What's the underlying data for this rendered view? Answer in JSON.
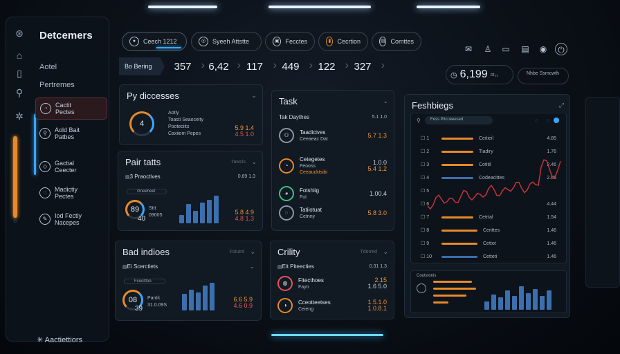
{
  "sidebar": {
    "brand": "Detcemers",
    "section_a": "Aotel",
    "section_b": "Pertremes",
    "items": [
      {
        "line1": "Cactit",
        "line2": "Pectes",
        "icon": "chart-icon"
      },
      {
        "line1": "Aold Bait",
        "line2": "Patbes",
        "icon": "search-icon"
      },
      {
        "line1": "Gactial",
        "line2": "Ceecter",
        "icon": "cube-icon"
      },
      {
        "line1": "Madictiy",
        "line2": "Pectes",
        "icon": "chat-icon"
      },
      {
        "line1": "Iod Fectiy",
        "line2": "Nacepes",
        "icon": "edit-icon"
      }
    ],
    "footer": "Aactiettiors"
  },
  "header": {
    "pills": [
      {
        "label": "Ceech 1212",
        "icon": "user-icon"
      },
      {
        "label": "Syeeh Attstte",
        "icon": "globe-icon"
      },
      {
        "label": "Fecctes",
        "icon": "lock-icon"
      },
      {
        "label": "Cecrtion",
        "icon": "bar-chart-icon"
      },
      {
        "label": "Comttes",
        "icon": "folder-icon"
      }
    ]
  },
  "stats": {
    "label": "Bo Bering",
    "values": [
      "357",
      "6,42",
      "117",
      "449",
      "122",
      "327"
    ]
  },
  "summary": {
    "value": "6,199",
    "suffix": "ot₃₅",
    "pill_text": "Nhbe Ssmcwth"
  },
  "cards": {
    "processes": {
      "title": "Py diccesses",
      "ring": "4",
      "line1": "Aotiy",
      "line2": "Toasti Seaoceity",
      "line3": "Pooteciits",
      "line4": "Caxiiom Pepes",
      "val1": "5.9 1.4",
      "val2": "4.5 1.0"
    },
    "stats": {
      "title": "Pair tatts",
      "sub": "Tawcis",
      "row_label": "3 Praoctives",
      "row_value": "0.89 1.3",
      "caption": "Gneeheet",
      "ring": "89",
      "ring_sub": "40",
      "small1": "Sttt",
      "small2": "09005",
      "val1": "5.8 4.9",
      "val2": "4.8 1.3",
      "bars": [
        12,
        28,
        18,
        30,
        34,
        40
      ]
    },
    "bad": {
      "title": "Bad indioes",
      "sub": "Fotuint",
      "row_label": "Ei Scerctiets",
      "caption": "Fcooittoo",
      "ring": "08",
      "ring_sub": "39",
      "small1": "Pantit",
      "small2": "31.0.09S",
      "val1": "6.6 5.9",
      "val2": "4.6 0.9",
      "bars": [
        24,
        30,
        26,
        36,
        40
      ]
    },
    "task": {
      "title": "Task",
      "header_label": "Tak Daythes",
      "header_value": "5.1 1.0",
      "rows": [
        {
          "l1": "Taadicives",
          "l2": "Ceeaeac Dat",
          "v1": "5.7 1.3",
          "v2": ""
        },
        {
          "l1": "Cetegetes",
          "l2": "Feooss",
          "l3": "Ceeaucktsibi",
          "v1": "1.0.0",
          "v2": "5.4 1.2"
        },
        {
          "l1": "Fotshiig",
          "l2": "Fut",
          "v1": "1.00.4",
          "v2": ""
        },
        {
          "l1": "Tatiiotuat",
          "l2": "Cetnny",
          "v1": "5.8 3.0",
          "v2": ""
        }
      ]
    },
    "crility": {
      "title": "Crility",
      "sub": "Tdorred",
      "row_label": "Eit Piteecties",
      "row_value": "0.31 1.3",
      "rows": [
        {
          "l1": "Fitecthoes",
          "l2": "Fayo",
          "v1": "2.15",
          "v2": "1.6 5.0"
        },
        {
          "l1": "Cceotteetses",
          "l2": "Ceieng",
          "v1": "1.5.1.0",
          "v2": "1.0.8.1"
        }
      ]
    },
    "feshbiegs": {
      "title": "Feshbiegs",
      "search": "Fess Piio ieeesed",
      "rows": [
        {
          "n": "1",
          "label": "Ceitieil",
          "val": "4.85",
          "color": "#e88a2a",
          "w": 46
        },
        {
          "n": "2",
          "label": "Tiadiry",
          "val": "1.76",
          "color": "#e88a2a",
          "w": 46
        },
        {
          "n": "3",
          "label": "Cotitil",
          "val": "2.46",
          "color": "#e88a2a",
          "w": 46
        },
        {
          "n": "4",
          "label": "Codeacittes",
          "val": "2.05",
          "color": "#3c6fae",
          "w": 46
        },
        {
          "n": "5",
          "label": "",
          "val": "",
          "color": "",
          "w": 0
        },
        {
          "n": "6",
          "label": "",
          "val": "4.44",
          "color": "",
          "w": 0
        },
        {
          "n": "7",
          "label": "Cetrtal",
          "val": "1.54",
          "color": "#e88a2a",
          "w": 46
        },
        {
          "n": "8",
          "label": "Cerittes",
          "val": "1.46",
          "color": "#e88a2a",
          "w": 52
        },
        {
          "n": "9",
          "label": "Cettot",
          "val": "1.46",
          "color": "#e88a2a",
          "w": 52
        },
        {
          "n": "10",
          "label": "Cetteti",
          "val": "1.46",
          "color": "#3c6fae",
          "w": 52
        }
      ],
      "footer_title": "Coutstonis",
      "footer_bars": [
        12,
        22,
        18,
        28,
        20,
        34,
        24,
        30,
        20,
        28
      ]
    }
  },
  "colors": {
    "accent": "#e88a2a",
    "blue": "#3aa7ff",
    "red": "#e6545a"
  }
}
